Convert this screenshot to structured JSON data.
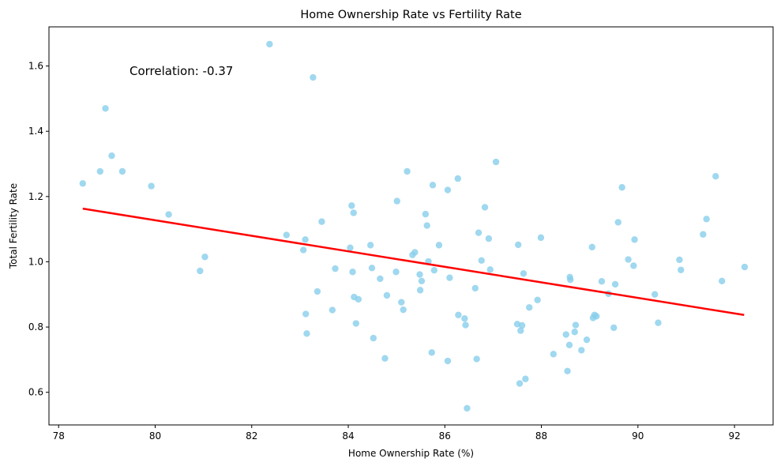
{
  "chart_data": {
    "type": "scatter",
    "title": "Home Ownership Rate vs Fertility Rate",
    "xlabel": "Home Ownership Rate (%)",
    "ylabel": "Total Fertility Rate",
    "xlim": [
      77.8,
      92.8
    ],
    "ylim": [
      0.5,
      1.72
    ],
    "xticks": [
      78,
      80,
      82,
      84,
      86,
      88,
      90,
      92
    ],
    "yticks": [
      0.6,
      0.8,
      1.0,
      1.2,
      1.4,
      1.6
    ],
    "ytick_labels": [
      "0.6",
      "0.8",
      "1.0",
      "1.2",
      "1.4",
      "1.6"
    ],
    "grid": false,
    "annotation": "Correlation: -0.37",
    "colors": {
      "points": "#87CEEB",
      "trend": "#FF0000"
    },
    "trend_line": {
      "x": [
        78.5,
        92.2
      ],
      "y": [
        1.163,
        0.837
      ]
    },
    "points": [
      [
        78.5,
        1.24
      ],
      [
        78.86,
        1.277
      ],
      [
        78.97,
        1.47
      ],
      [
        79.1,
        1.325
      ],
      [
        79.32,
        1.277
      ],
      [
        79.92,
        1.232
      ],
      [
        80.28,
        1.145
      ],
      [
        80.93,
        0.972
      ],
      [
        81.03,
        1.015
      ],
      [
        82.37,
        1.667
      ],
      [
        82.72,
        1.082
      ],
      [
        83.07,
        1.036
      ],
      [
        83.11,
        1.068
      ],
      [
        83.12,
        0.84
      ],
      [
        83.14,
        0.78
      ],
      [
        83.27,
        1.565
      ],
      [
        83.36,
        0.909
      ],
      [
        83.45,
        1.123
      ],
      [
        83.67,
        0.852
      ],
      [
        83.73,
        0.979
      ],
      [
        84.04,
        1.043
      ],
      [
        84.07,
        1.172
      ],
      [
        84.09,
        0.969
      ],
      [
        84.11,
        1.15
      ],
      [
        84.12,
        0.892
      ],
      [
        84.16,
        0.811
      ],
      [
        84.21,
        0.885
      ],
      [
        84.46,
        1.051
      ],
      [
        84.49,
        0.981
      ],
      [
        84.52,
        0.766
      ],
      [
        84.66,
        0.948
      ],
      [
        84.76,
        0.704
      ],
      [
        84.8,
        0.897
      ],
      [
        84.99,
        0.969
      ],
      [
        85.01,
        1.186
      ],
      [
        85.1,
        0.876
      ],
      [
        85.14,
        0.853
      ],
      [
        85.22,
        1.277
      ],
      [
        85.33,
        1.021
      ],
      [
        85.38,
        1.029
      ],
      [
        85.48,
        0.961
      ],
      [
        85.49,
        0.913
      ],
      [
        85.52,
        0.941
      ],
      [
        85.6,
        1.146
      ],
      [
        85.63,
        1.111
      ],
      [
        85.66,
        1.001
      ],
      [
        85.73,
        0.722
      ],
      [
        85.75,
        1.235
      ],
      [
        85.78,
        0.974
      ],
      [
        85.88,
        1.051
      ],
      [
        86.06,
        0.696
      ],
      [
        86.06,
        1.22
      ],
      [
        86.1,
        0.951
      ],
      [
        86.27,
        1.255
      ],
      [
        86.28,
        0.837
      ],
      [
        86.41,
        0.826
      ],
      [
        86.43,
        0.806
      ],
      [
        86.46,
        0.551
      ],
      [
        86.63,
        0.919
      ],
      [
        86.66,
        0.702
      ],
      [
        86.7,
        1.089
      ],
      [
        86.76,
        1.004
      ],
      [
        86.83,
        1.167
      ],
      [
        86.91,
        1.071
      ],
      [
        86.94,
        0.976
      ],
      [
        87.06,
        1.306
      ],
      [
        87.5,
        0.809
      ],
      [
        87.52,
        1.052
      ],
      [
        87.55,
        0.627
      ],
      [
        87.57,
        0.789
      ],
      [
        87.6,
        0.805
      ],
      [
        87.63,
        0.964
      ],
      [
        87.67,
        0.641
      ],
      [
        87.75,
        0.86
      ],
      [
        87.92,
        0.883
      ],
      [
        87.99,
        1.074
      ],
      [
        88.25,
        0.717
      ],
      [
        88.51,
        0.777
      ],
      [
        88.54,
        0.665
      ],
      [
        88.58,
        0.745
      ],
      [
        88.59,
        0.953
      ],
      [
        88.6,
        0.945
      ],
      [
        88.69,
        0.785
      ],
      [
        88.71,
        0.806
      ],
      [
        88.83,
        0.729
      ],
      [
        88.94,
        0.761
      ],
      [
        89.05,
        1.045
      ],
      [
        89.07,
        0.828
      ],
      [
        89.1,
        0.837
      ],
      [
        89.14,
        0.833
      ],
      [
        89.25,
        0.94
      ],
      [
        89.39,
        0.902
      ],
      [
        89.5,
        0.798
      ],
      [
        89.53,
        0.931
      ],
      [
        89.59,
        1.121
      ],
      [
        89.67,
        1.228
      ],
      [
        89.8,
        1.007
      ],
      [
        89.91,
        0.988
      ],
      [
        89.93,
        1.068
      ],
      [
        90.35,
        0.9
      ],
      [
        90.42,
        0.813
      ],
      [
        90.86,
        1.006
      ],
      [
        90.89,
        0.975
      ],
      [
        91.35,
        1.084
      ],
      [
        91.42,
        1.131
      ],
      [
        91.61,
        1.262
      ],
      [
        91.74,
        0.941
      ],
      [
        92.21,
        0.984
      ]
    ]
  }
}
